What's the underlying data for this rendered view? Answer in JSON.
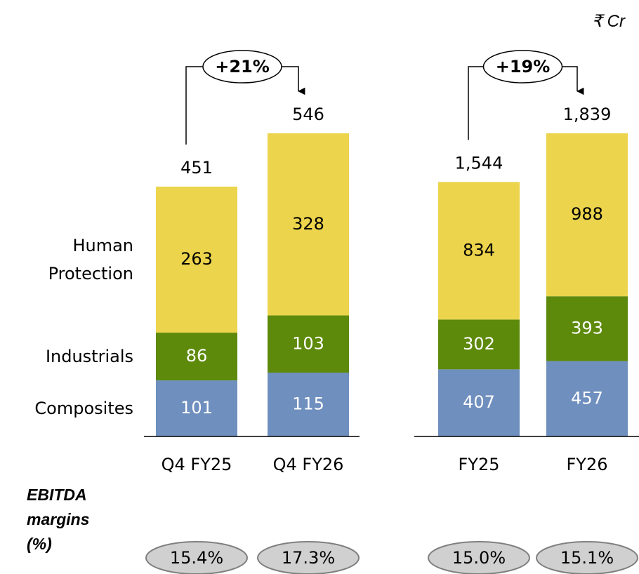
{
  "unit": "₹ Cr",
  "margins_title": "EBITDA margins (%)",
  "chart_data": [
    {
      "type": "bar",
      "stacked": true,
      "categories": [
        "Q4 FY25",
        "Q4 FY26"
      ],
      "series": [
        {
          "name": "Composites",
          "color": "#6f8fbe",
          "label_color": "#ffffff",
          "values": [
            101,
            115
          ]
        },
        {
          "name": "Industrials",
          "color": "#5e8a0c",
          "label_color": "#ffffff",
          "values": [
            86,
            103
          ]
        },
        {
          "name": "Human Protection",
          "color": "#ecd44c",
          "label_color": "#000000",
          "values": [
            263,
            328
          ]
        }
      ],
      "totals": {
        "values": [
          451,
          546
        ]
      },
      "growth": {
        "value": 21,
        "label": "+21%"
      },
      "margins": {
        "values": [
          15.4,
          17.3
        ],
        "value_labels": [
          "15.4%",
          "17.3%"
        ]
      }
    },
    {
      "type": "bar",
      "stacked": true,
      "categories": [
        "FY25",
        "FY26"
      ],
      "series": [
        {
          "color": "#6f8fbe",
          "label_color": "#ffffff",
          "values": [
            407,
            457
          ]
        },
        {
          "color": "#5e8a0c",
          "label_color": "#ffffff",
          "values": [
            302,
            393
          ]
        },
        {
          "color": "#ecd44c",
          "label_color": "#000000",
          "values": [
            834,
            988
          ]
        }
      ],
      "totals": {
        "values": [
          1544,
          1839
        ],
        "value_labels": [
          "1,544",
          "1,839"
        ]
      },
      "growth": {
        "value": 19,
        "label": "+19%"
      },
      "margins": {
        "values": [
          15.0,
          15.1
        ],
        "value_labels": [
          "15.0%",
          "15.1%"
        ]
      }
    }
  ]
}
